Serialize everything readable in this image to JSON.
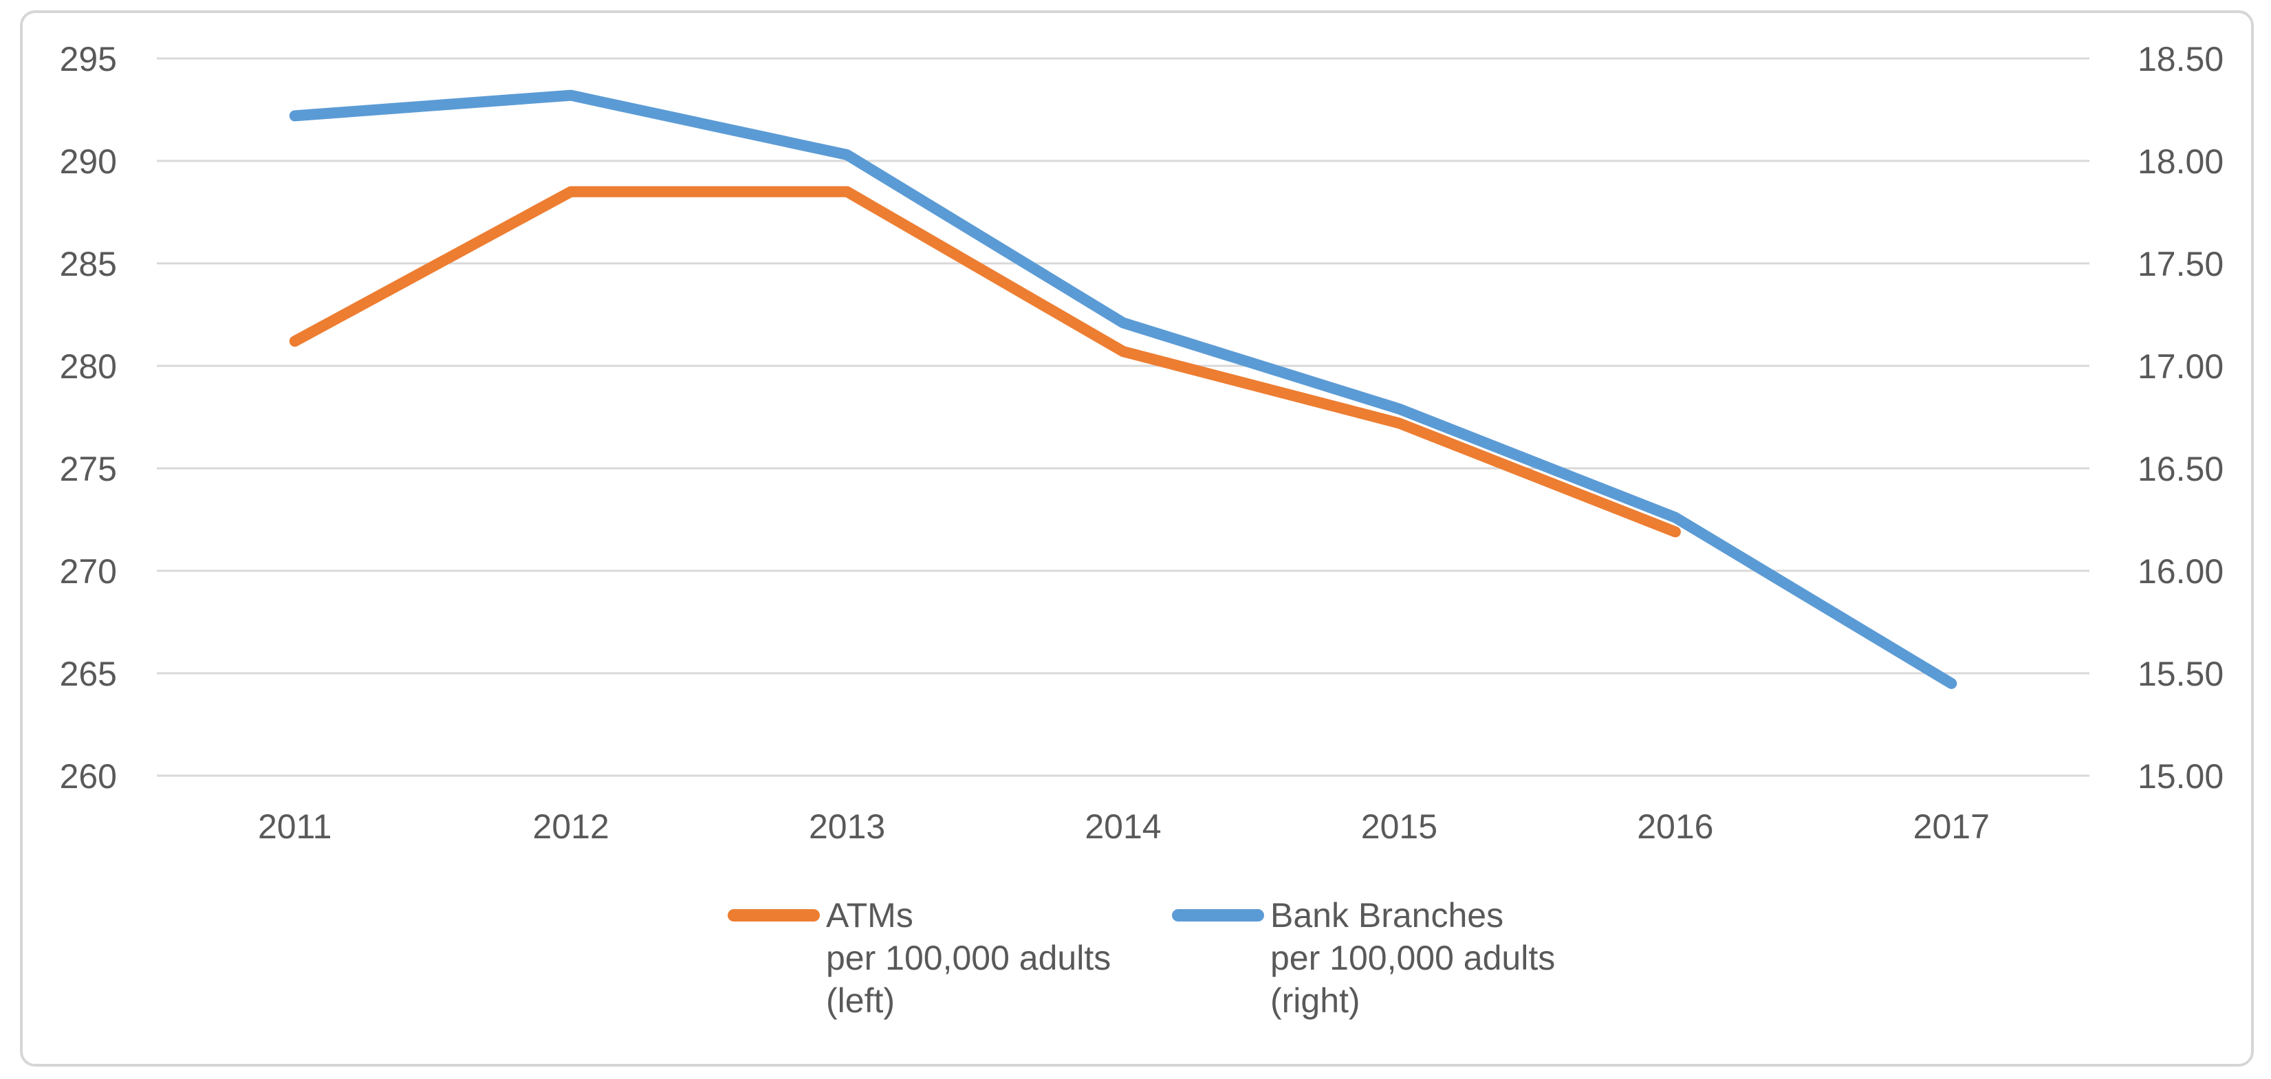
{
  "chart_data": {
    "type": "line",
    "categories": [
      "2011",
      "2012",
      "2013",
      "2014",
      "2015",
      "2016",
      "2017"
    ],
    "series": [
      {
        "name": "ATMs",
        "sublabel": "per 100,000 adults",
        "side_label": "(left)",
        "axis": "left",
        "color": "#ED7D31",
        "values": [
          281.2,
          288.5,
          288.5,
          280.7,
          277.2,
          271.9,
          null
        ]
      },
      {
        "name": "Bank Branches",
        "sublabel": "per 100,000 adults",
        "side_label": "(right)",
        "axis": "right",
        "color": "#5B9BD5",
        "values": [
          18.22,
          18.32,
          18.03,
          17.21,
          16.79,
          16.26,
          15.45
        ]
      }
    ],
    "title": "",
    "xlabel": "",
    "ylabel": "",
    "grid": true,
    "legend_position": "bottom",
    "left_axis": {
      "min": 260,
      "max": 295,
      "step": 5,
      "tick_labels": [
        "295",
        "290",
        "285",
        "280",
        "275",
        "270",
        "265",
        "260"
      ]
    },
    "right_axis": {
      "min": 15.0,
      "max": 18.5,
      "step": 0.5,
      "tick_labels": [
        "18.50",
        "18.00",
        "17.50",
        "17.00",
        "16.50",
        "16.00",
        "15.50",
        "15.00"
      ]
    }
  },
  "colors": {
    "gridline": "#D9D9D9",
    "axis_text": "#595959",
    "frame_border": "#D6D6D6",
    "background": "#FFFFFF",
    "atms_line": "#ED7D31",
    "bank_branches_line": "#5B9BD5"
  }
}
